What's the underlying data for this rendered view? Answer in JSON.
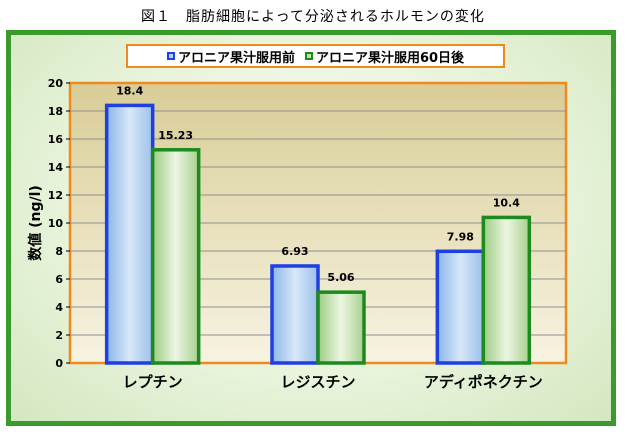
{
  "caption": "図１　脂肪細胞によって分泌されるホルモンの変化",
  "chart_data": {
    "type": "bar",
    "title": "",
    "xlabel": "",
    "ylabel": "数値 (ng/l)",
    "ylim": [
      0,
      20
    ],
    "yticks": [
      0,
      2,
      4,
      6,
      8,
      10,
      12,
      14,
      16,
      18,
      20
    ],
    "categories": [
      "レプチン",
      "レジスチン",
      "アディポネクチン"
    ],
    "series": [
      {
        "name": "アロニア果汁服用前",
        "values": [
          18.4,
          6.93,
          7.98
        ],
        "value_labels": [
          "18.4",
          "6.93",
          "7.98"
        ],
        "fill": "#b4d0ee",
        "stroke": "#1f3fe0"
      },
      {
        "name": "アロニア果汁服用60日後",
        "values": [
          15.23,
          5.06,
          10.4
        ],
        "value_labels": [
          "15.23",
          "5.06",
          "10.4"
        ],
        "fill": "#c7e2b2",
        "stroke": "#1c8a1c"
      }
    ],
    "legend_position": "top",
    "grid": true,
    "colors": {
      "frame_border": "#3a9a2c",
      "plot_border": "#f08a1c",
      "plot_fill": "#e9e1b8",
      "grid": "#8f8f8f"
    }
  }
}
